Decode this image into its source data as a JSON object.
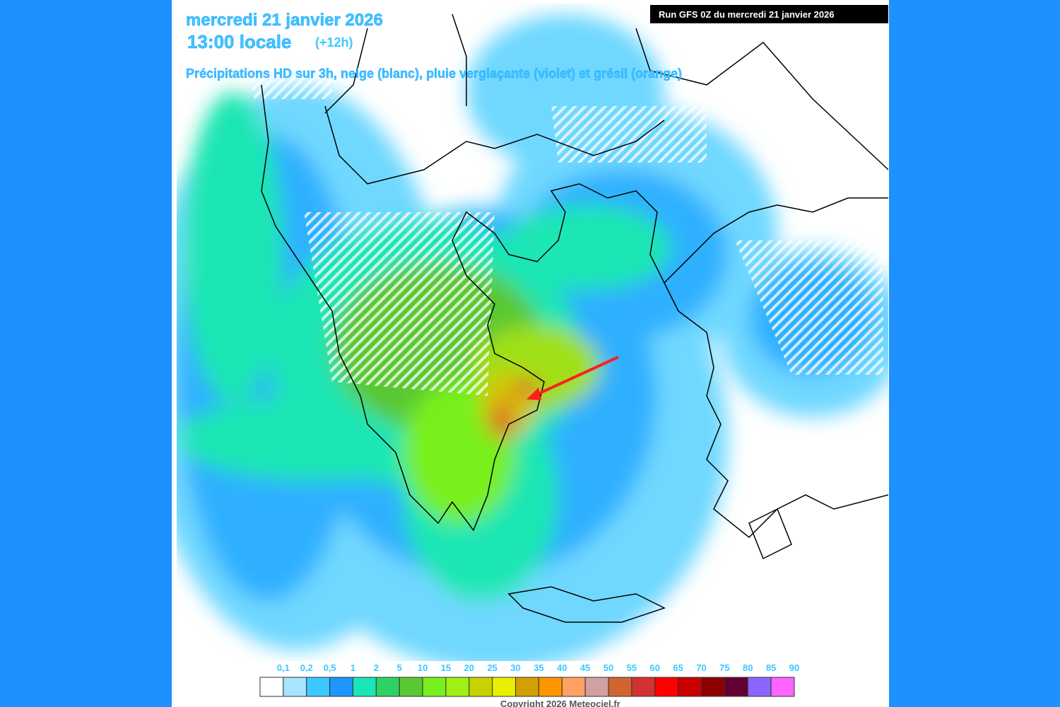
{
  "header": {
    "date": "mercredi 21 janvier 2026",
    "time": "13:00 locale",
    "offset": "(+12h)",
    "description": "Précipitations HD sur 3h, neige (blanc), pluie verglaçante (violet) et grésil (orange)",
    "run": "Run GFS 0Z du mercredi 21 janvier 2026"
  },
  "legend": {
    "labels": [
      "0,1",
      "0,2",
      "0,5",
      "1",
      "2",
      "5",
      "10",
      "15",
      "20",
      "25",
      "30",
      "35",
      "40",
      "45",
      "50",
      "55",
      "60",
      "65",
      "70",
      "75",
      "80",
      "85",
      "90"
    ],
    "colors": [
      "#ffffff",
      "#a8e4ff",
      "#3cc8ff",
      "#1e96ff",
      "#19e6b4",
      "#2ed264",
      "#5ac832",
      "#78f01e",
      "#a0f014",
      "#c8d200",
      "#e6f000",
      "#d2a000",
      "#ff9600",
      "#ffa064",
      "#d2a0a0",
      "#d26432",
      "#d23232",
      "#ff0000",
      "#c80000",
      "#8c0000",
      "#640032",
      "#8c64ff",
      "#ff64ff"
    ]
  },
  "footer": {
    "copyright": "Copyright 2026 Meteociel.fr"
  }
}
